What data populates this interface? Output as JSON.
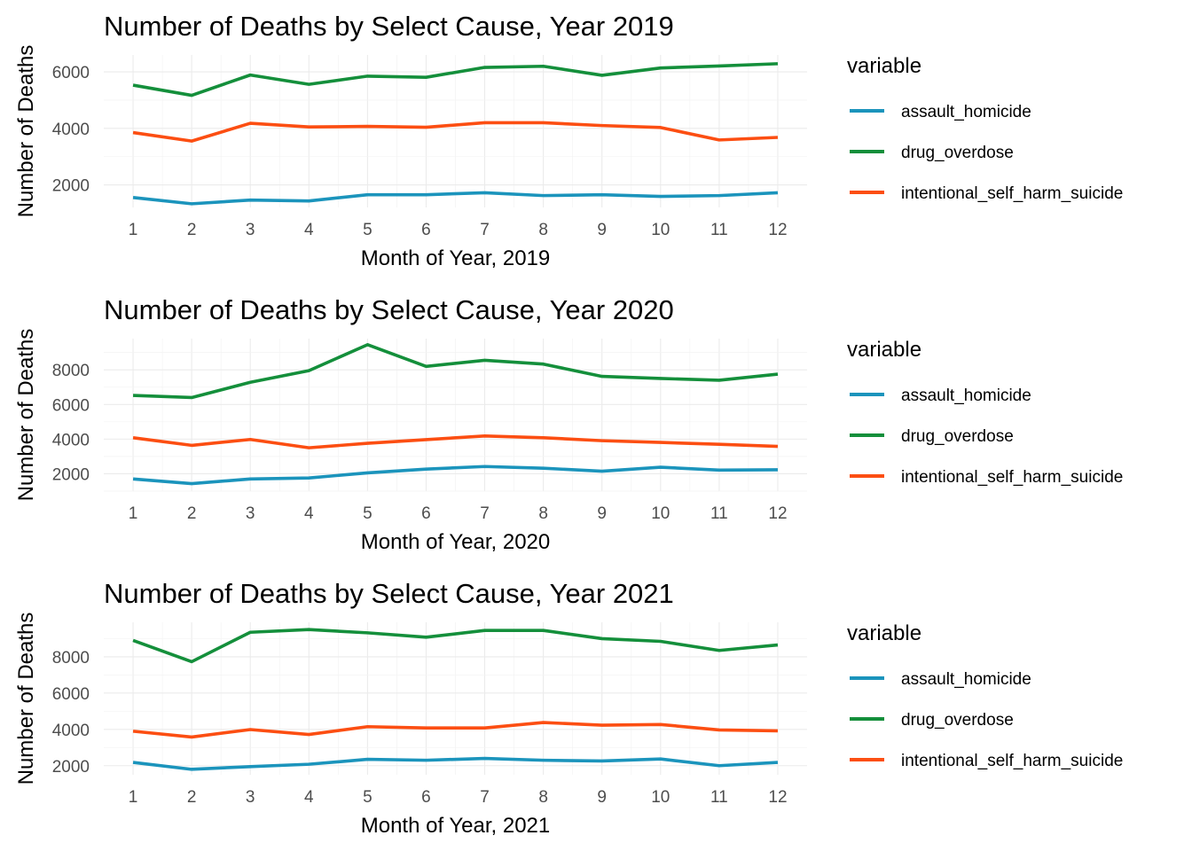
{
  "colors": {
    "assault_homicide": "#1b94bc",
    "drug_overdose": "#148f3b",
    "intentional_self_harm_suicide": "#fc4e12"
  },
  "chart_data": [
    {
      "type": "line",
      "title": "Number of Deaths by Select Cause, Year 2019",
      "xlabel": "Month of Year, 2019",
      "ylabel": "Number of Deaths",
      "legend_title": "variable",
      "legend_position": "right",
      "grid": true,
      "x": [
        1,
        2,
        3,
        4,
        5,
        6,
        7,
        8,
        9,
        10,
        11,
        12
      ],
      "xlim": [
        0.5,
        12.5
      ],
      "ylim": [
        1200,
        6600
      ],
      "yticks": [
        2000,
        4000,
        6000
      ],
      "series": [
        {
          "name": "assault_homicide",
          "values": [
            1550,
            1330,
            1460,
            1430,
            1650,
            1650,
            1720,
            1620,
            1650,
            1590,
            1620,
            1720
          ]
        },
        {
          "name": "drug_overdose",
          "values": [
            5530,
            5170,
            5890,
            5560,
            5850,
            5810,
            6160,
            6200,
            5880,
            6140,
            6210,
            6290
          ]
        },
        {
          "name": "intentional_self_harm_suicide",
          "values": [
            3850,
            3550,
            4180,
            4050,
            4070,
            4040,
            4200,
            4200,
            4100,
            4030,
            3590,
            3680
          ]
        }
      ]
    },
    {
      "type": "line",
      "title": "Number of Deaths by Select Cause, Year 2020",
      "xlabel": "Month of Year, 2020",
      "ylabel": "Number of Deaths",
      "legend_title": "variable",
      "legend_position": "right",
      "grid": true,
      "x": [
        1,
        2,
        3,
        4,
        5,
        6,
        7,
        8,
        9,
        10,
        11,
        12
      ],
      "xlim": [
        0.5,
        12.5
      ],
      "ylim": [
        1000,
        9800
      ],
      "yticks": [
        2000,
        4000,
        6000,
        8000
      ],
      "series": [
        {
          "name": "assault_homicide",
          "values": [
            1700,
            1430,
            1700,
            1760,
            2050,
            2270,
            2420,
            2320,
            2150,
            2380,
            2210,
            2230
          ]
        },
        {
          "name": "drug_overdose",
          "values": [
            6520,
            6400,
            7280,
            7950,
            9450,
            8200,
            8550,
            8330,
            7620,
            7500,
            7400,
            7750
          ]
        },
        {
          "name": "intentional_self_harm_suicide",
          "values": [
            4080,
            3640,
            3980,
            3500,
            3760,
            3970,
            4180,
            4080,
            3910,
            3810,
            3700,
            3580
          ]
        }
      ]
    },
    {
      "type": "line",
      "title": "Number of Deaths by Select Cause, Year 2021",
      "xlabel": "Month of Year, 2021",
      "ylabel": "Number of Deaths",
      "legend_title": "variable",
      "legend_position": "right",
      "grid": true,
      "x": [
        1,
        2,
        3,
        4,
        5,
        6,
        7,
        8,
        9,
        10,
        11,
        12
      ],
      "xlim": [
        0.5,
        12.5
      ],
      "ylim": [
        1500,
        9900
      ],
      "yticks": [
        2000,
        4000,
        6000,
        8000
      ],
      "series": [
        {
          "name": "assault_homicide",
          "values": [
            2180,
            1800,
            1950,
            2080,
            2350,
            2300,
            2400,
            2300,
            2260,
            2370,
            2000,
            2180
          ]
        },
        {
          "name": "drug_overdose",
          "values": [
            8900,
            7730,
            9350,
            9500,
            9320,
            9080,
            9450,
            9450,
            9000,
            8850,
            8350,
            8650
          ]
        },
        {
          "name": "intentional_self_harm_suicide",
          "values": [
            3900,
            3580,
            3990,
            3720,
            4150,
            4080,
            4080,
            4380,
            4230,
            4270,
            3970,
            3920
          ]
        }
      ]
    }
  ]
}
